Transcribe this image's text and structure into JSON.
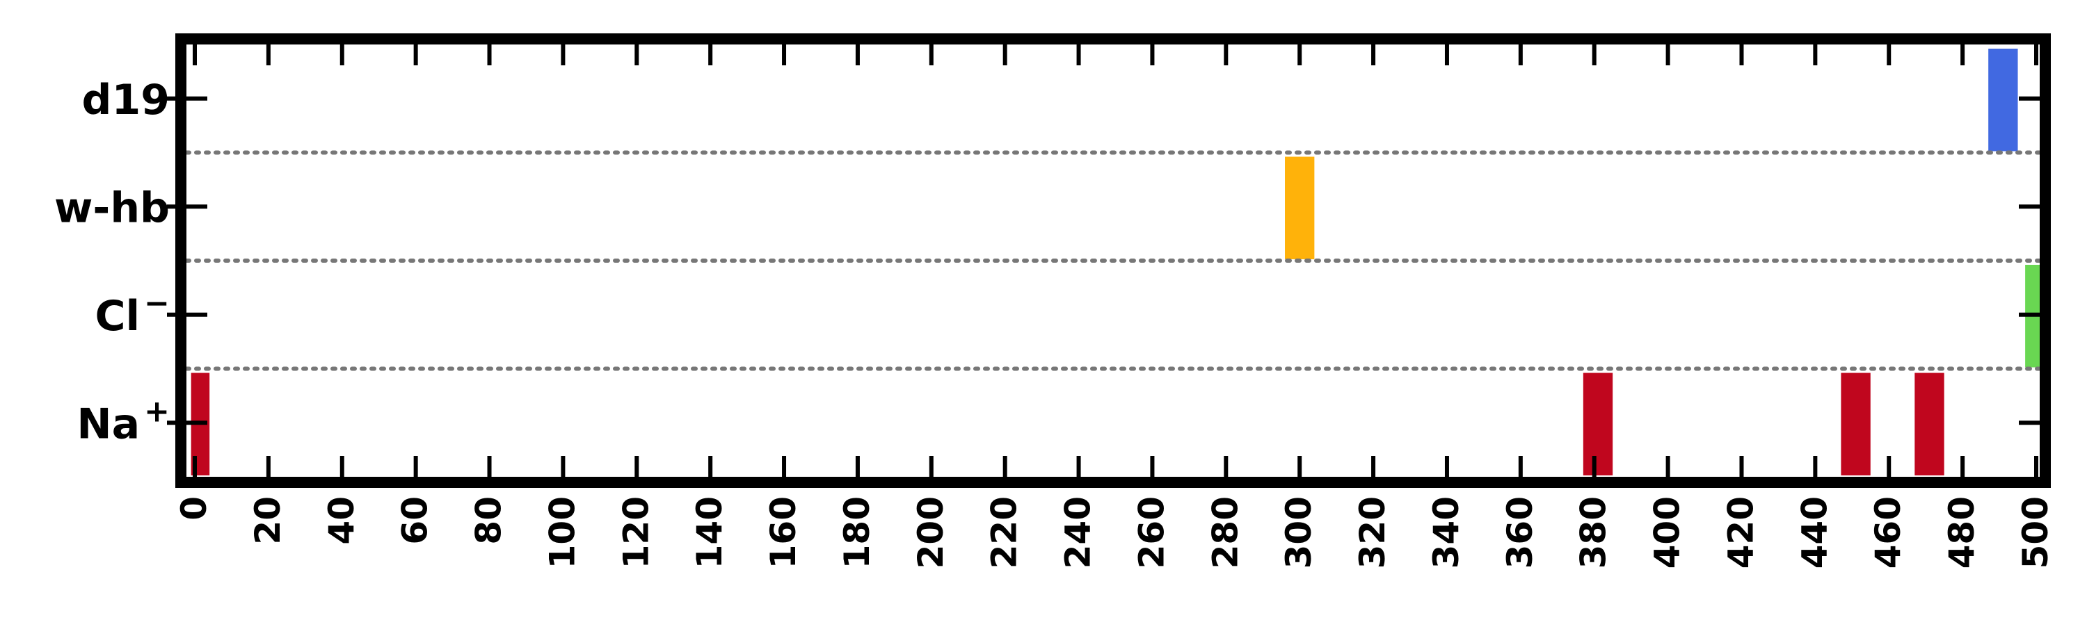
{
  "chart_data": {
    "type": "event-raster",
    "title": "",
    "xlabel": "",
    "ylabel": "",
    "xlim": [
      0,
      500
    ],
    "x_ticks": [
      0,
      20,
      40,
      60,
      80,
      100,
      120,
      140,
      160,
      180,
      200,
      220,
      240,
      260,
      280,
      300,
      320,
      340,
      360,
      380,
      400,
      420,
      440,
      460,
      480,
      500
    ],
    "x_tick_labels": [
      "0",
      "20",
      "40",
      "60",
      "80",
      "100",
      "120",
      "140",
      "160",
      "180",
      "200",
      "220",
      "240",
      "260",
      "280",
      "300",
      "320",
      "340",
      "360",
      "380",
      "400",
      "420",
      "440",
      "460",
      "480",
      "500"
    ],
    "rows": [
      {
        "label": "Na",
        "superscript": "+",
        "color": "#c0061e",
        "events": [
          {
            "start": -1,
            "end": 4
          },
          {
            "start": 377,
            "end": 385
          },
          {
            "start": 447,
            "end": 455
          },
          {
            "start": 467,
            "end": 475
          }
        ]
      },
      {
        "label": "Cl",
        "superscript": "−",
        "color": "#69d752",
        "events": [
          {
            "start": 497,
            "end": 504
          }
        ]
      },
      {
        "label": "w-hb",
        "superscript": "",
        "color": "#ffb20a",
        "events": [
          {
            "start": 296,
            "end": 304
          }
        ]
      },
      {
        "label": "d19",
        "superscript": "",
        "color": "#4169e1",
        "events": [
          {
            "start": 487,
            "end": 495
          }
        ]
      }
    ],
    "row_separators": "dotted",
    "grid": false,
    "legend": "none"
  }
}
